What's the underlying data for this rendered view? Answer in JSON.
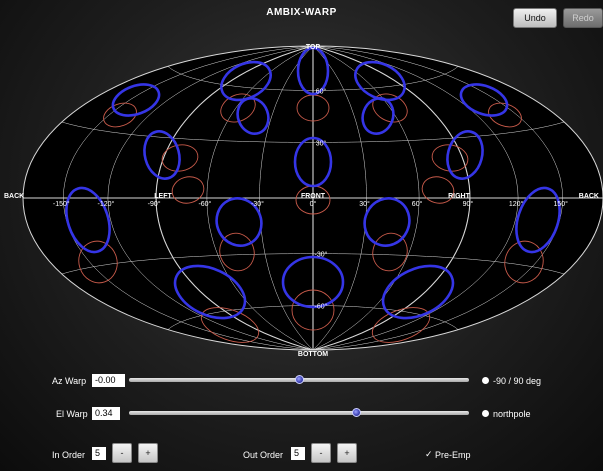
{
  "app": {
    "title": "AMBIX-WARP"
  },
  "toolbar": {
    "undo_label": "Undo",
    "redo_label": "Redo"
  },
  "map": {
    "pole_top": "TOP",
    "pole_bottom": "BOTTOM",
    "az_labels": {
      "back_left": "BACK",
      "left": "LEFT",
      "front": "FRONT",
      "right": "RIGHT",
      "back_right": "BACK"
    },
    "az_ticks": [
      "-150°",
      "-120°",
      "-90°",
      "-60°",
      "-30°",
      "0°",
      "30°",
      "60°",
      "90°",
      "120°",
      "150°"
    ],
    "el_ticks": [
      "60°",
      "30°",
      "-30°",
      "-60°"
    ],
    "colors": {
      "grid": "#d8d8d8",
      "warped": "#3535e6",
      "original": "#c75a4a",
      "background": "#000000"
    }
  },
  "controls": {
    "az_warp": {
      "label": "Az Warp",
      "value": "-0.00",
      "slider_fraction": 0.5,
      "option_label": "-90 / 90 deg"
    },
    "el_warp": {
      "label": "El Warp",
      "value": "0.34",
      "slider_fraction": 0.67,
      "option_label": "northpole"
    },
    "in_order": {
      "label": "In Order",
      "value": "5",
      "minus_label": "-",
      "plus_label": "+"
    },
    "out_order": {
      "label": "Out Order",
      "value": "5",
      "minus_label": "-",
      "plus_label": "+"
    },
    "pre_emp": {
      "label": "Pre-Emp",
      "checked": true
    }
  }
}
